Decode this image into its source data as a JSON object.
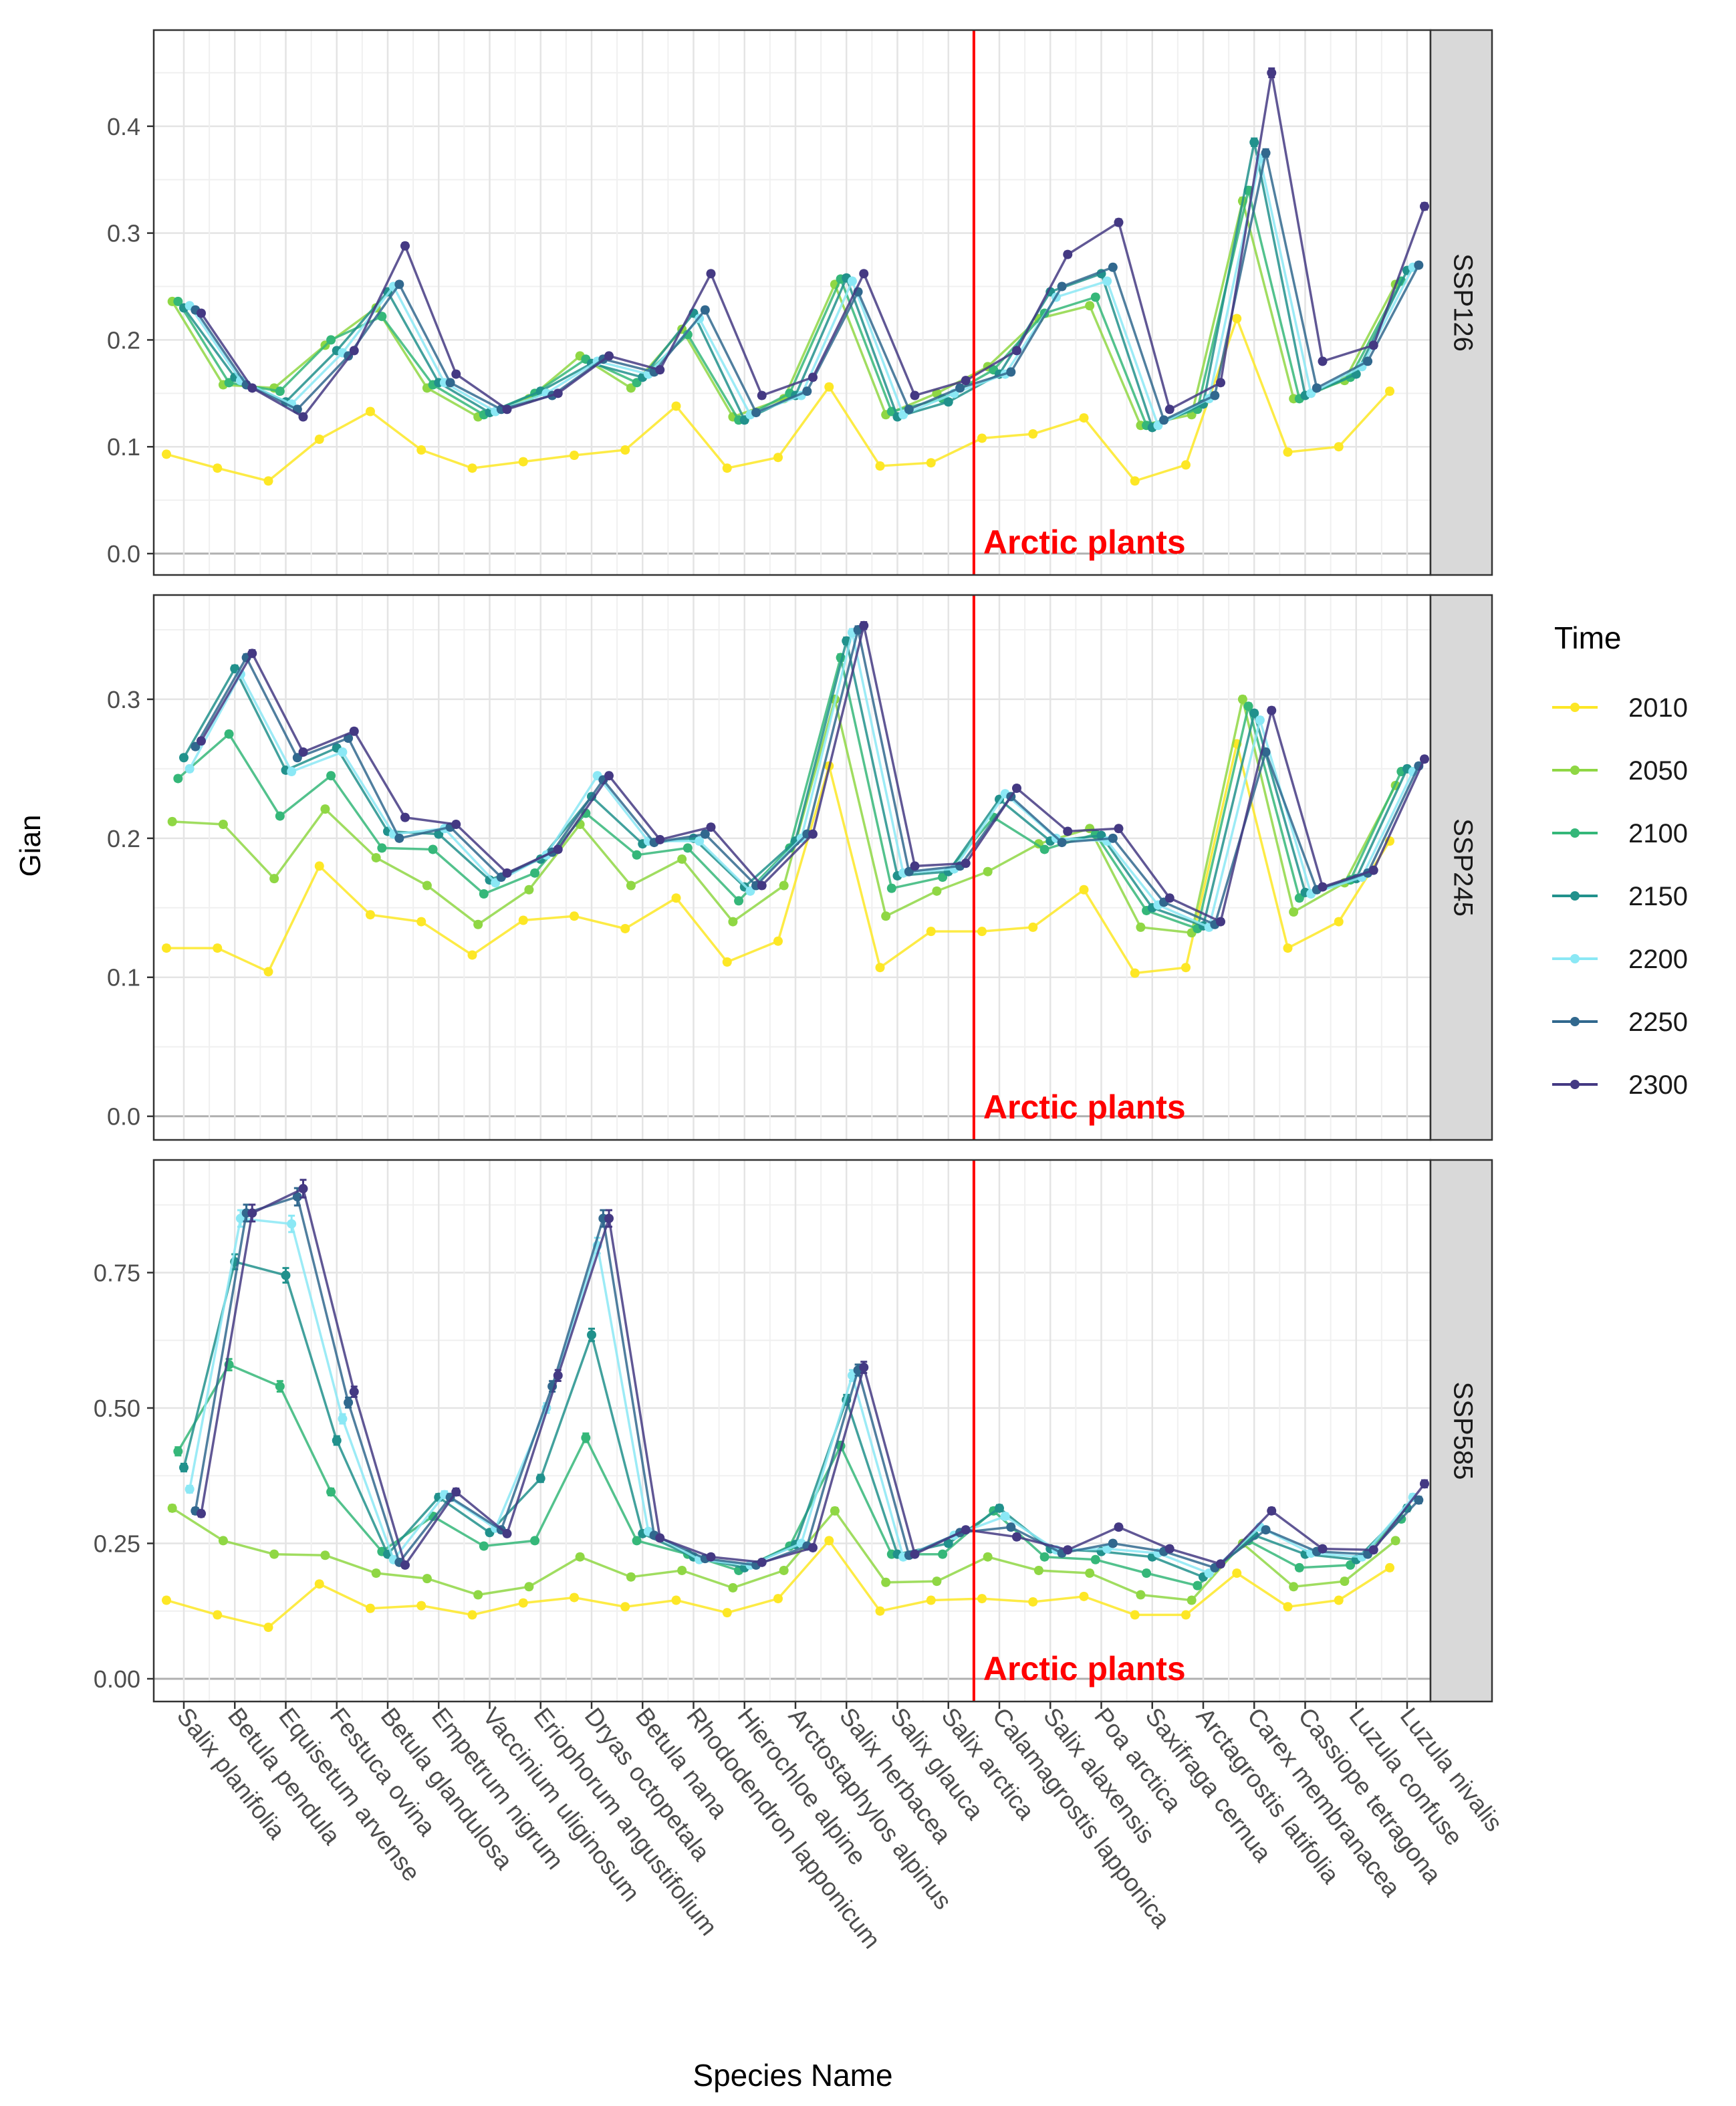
{
  "chart_data": {
    "type": "line",
    "xlabel": "Species Name",
    "ylabel": "Gian",
    "legend_title": "Time",
    "legend_position": "right",
    "annotation": "Arctic plants",
    "annotation_color": "#ff0000",
    "annotation_after_category": "Salix arctica",
    "categories": [
      "Salix planifolia",
      "Betula pendula",
      "Equisetum arvense",
      "Festuca ovina",
      "Betula glandulosa",
      "Empetrum nigrum",
      "Vaccinium uliginosum",
      "Eriophorum angustifolium",
      "Dryas octopetala",
      "Betula nana",
      "Rhododendron lapponicum",
      "Hierochloe alpine",
      "Arctostaphylos alpinus",
      "Salix herbacea",
      "Salix glauca",
      "Salix arctica",
      "Calamagrostis lapponica",
      "Salix alaxensis",
      "Poa arctica",
      "Saxifraga cernua",
      "Arctagrostis latifolia",
      "Carex membranacea",
      "Cassiope tetragona",
      "Luzula confuse",
      "Luzula nivalis"
    ],
    "series_names": [
      "2010",
      "2050",
      "2100",
      "2150",
      "2200",
      "2250",
      "2300"
    ],
    "series_colors": [
      "#fde725",
      "#8fd744",
      "#35b779",
      "#21918c",
      "#8be8f5",
      "#31688e",
      "#443983"
    ],
    "panels": [
      {
        "label": "SSP126",
        "ylim": [
          -0.02,
          0.49
        ],
        "yticks": [
          0.0,
          0.1,
          0.2,
          0.3,
          0.4
        ],
        "yticklabels": [
          "0.0",
          "0.1",
          "0.2",
          "0.3",
          "0.4"
        ],
        "values": [
          [
            0.093,
            0.08,
            0.068,
            0.107,
            0.133,
            0.097,
            0.08,
            0.086,
            0.092,
            0.097,
            0.138,
            0.08,
            0.09,
            0.156,
            0.082,
            0.085,
            0.108,
            0.112,
            0.127,
            0.068,
            0.083,
            0.22,
            0.095,
            0.1,
            0.152
          ],
          [
            0.236,
            0.158,
            0.155,
            0.195,
            0.23,
            0.155,
            0.128,
            0.145,
            0.185,
            0.155,
            0.21,
            0.128,
            0.145,
            0.252,
            0.13,
            0.15,
            0.175,
            0.22,
            0.232,
            0.12,
            0.13,
            0.33,
            0.145,
            0.162,
            0.252
          ],
          [
            0.236,
            0.16,
            0.152,
            0.2,
            0.222,
            0.158,
            0.13,
            0.15,
            0.182,
            0.16,
            0.205,
            0.125,
            0.15,
            0.257,
            0.133,
            0.145,
            0.172,
            0.225,
            0.24,
            0.12,
            0.135,
            0.34,
            0.145,
            0.165,
            0.255
          ],
          [
            0.23,
            0.165,
            0.142,
            0.19,
            0.245,
            0.16,
            0.132,
            0.152,
            0.178,
            0.165,
            0.225,
            0.125,
            0.148,
            0.258,
            0.128,
            0.142,
            0.168,
            0.245,
            0.262,
            0.118,
            0.14,
            0.385,
            0.148,
            0.168,
            0.265
          ],
          [
            0.232,
            0.162,
            0.14,
            0.188,
            0.25,
            0.16,
            0.133,
            0.15,
            0.18,
            0.168,
            0.22,
            0.13,
            0.148,
            0.255,
            0.13,
            0.15,
            0.168,
            0.24,
            0.255,
            0.12,
            0.145,
            0.37,
            0.15,
            0.175,
            0.268
          ],
          [
            0.228,
            0.158,
            0.135,
            0.185,
            0.252,
            0.16,
            0.135,
            0.148,
            0.182,
            0.17,
            0.228,
            0.132,
            0.152,
            0.245,
            0.135,
            0.155,
            0.17,
            0.25,
            0.268,
            0.125,
            0.148,
            0.375,
            0.155,
            0.18,
            0.27
          ],
          [
            0.225,
            0.155,
            0.128,
            0.19,
            0.288,
            0.168,
            0.135,
            0.15,
            0.185,
            0.172,
            0.262,
            0.148,
            0.165,
            0.262,
            0.148,
            0.162,
            0.19,
            0.28,
            0.31,
            0.135,
            0.16,
            0.45,
            0.18,
            0.195,
            0.325
          ]
        ]
      },
      {
        "label": "SSP245",
        "ylim": [
          -0.017,
          0.375
        ],
        "yticks": [
          0.0,
          0.1,
          0.2,
          0.3
        ],
        "yticklabels": [
          "0.0",
          "0.1",
          "0.2",
          "0.3"
        ],
        "values": [
          [
            0.121,
            0.121,
            0.104,
            0.18,
            0.145,
            0.14,
            0.116,
            0.141,
            0.144,
            0.135,
            0.157,
            0.111,
            0.126,
            0.252,
            0.107,
            0.133,
            0.133,
            0.136,
            0.163,
            0.103,
            0.107,
            0.268,
            0.121,
            0.14,
            0.198
          ],
          [
            0.212,
            0.21,
            0.171,
            0.221,
            0.186,
            0.166,
            0.138,
            0.163,
            0.21,
            0.166,
            0.185,
            0.14,
            0.166,
            0.3,
            0.144,
            0.162,
            0.176,
            0.196,
            0.207,
            0.136,
            0.132,
            0.3,
            0.147,
            0.168,
            0.238
          ],
          [
            0.243,
            0.275,
            0.216,
            0.245,
            0.193,
            0.192,
            0.16,
            0.175,
            0.218,
            0.188,
            0.193,
            0.155,
            0.193,
            0.33,
            0.164,
            0.172,
            0.215,
            0.192,
            0.203,
            0.148,
            0.135,
            0.295,
            0.157,
            0.17,
            0.248
          ],
          [
            0.258,
            0.322,
            0.249,
            0.265,
            0.205,
            0.203,
            0.17,
            0.185,
            0.23,
            0.196,
            0.2,
            0.165,
            0.198,
            0.342,
            0.173,
            0.176,
            0.228,
            0.198,
            0.202,
            0.15,
            0.137,
            0.29,
            0.161,
            0.171,
            0.25
          ],
          [
            0.25,
            0.318,
            0.248,
            0.262,
            0.203,
            0.207,
            0.168,
            0.188,
            0.245,
            0.198,
            0.198,
            0.162,
            0.2,
            0.348,
            0.175,
            0.178,
            0.232,
            0.2,
            0.198,
            0.152,
            0.136,
            0.285,
            0.16,
            0.172,
            0.248
          ],
          [
            0.266,
            0.33,
            0.258,
            0.272,
            0.2,
            0.208,
            0.172,
            0.19,
            0.242,
            0.197,
            0.203,
            0.166,
            0.203,
            0.35,
            0.176,
            0.18,
            0.23,
            0.197,
            0.2,
            0.154,
            0.138,
            0.262,
            0.163,
            0.175,
            0.252
          ],
          [
            0.27,
            0.333,
            0.262,
            0.277,
            0.215,
            0.21,
            0.175,
            0.192,
            0.245,
            0.199,
            0.208,
            0.166,
            0.203,
            0.353,
            0.18,
            0.182,
            0.236,
            0.205,
            0.207,
            0.157,
            0.14,
            0.292,
            0.165,
            0.177,
            0.257
          ]
        ]
      },
      {
        "label": "SSP585",
        "ylim": [
          -0.042,
          0.958
        ],
        "yticks": [
          0.0,
          0.25,
          0.5,
          0.75
        ],
        "yticklabels": [
          "0.00",
          "0.25",
          "0.50",
          "0.75"
        ],
        "values": [
          [
            0.145,
            0.118,
            0.095,
            0.175,
            0.13,
            0.135,
            0.118,
            0.14,
            0.15,
            0.133,
            0.145,
            0.122,
            0.148,
            0.255,
            0.125,
            0.145,
            0.148,
            0.142,
            0.152,
            0.118,
            0.118,
            0.195,
            0.133,
            0.145,
            0.205
          ],
          [
            0.315,
            0.255,
            0.23,
            0.228,
            0.195,
            0.185,
            0.155,
            0.17,
            0.225,
            0.188,
            0.2,
            0.168,
            0.2,
            0.31,
            0.178,
            0.18,
            0.225,
            0.2,
            0.195,
            0.155,
            0.145,
            0.25,
            0.17,
            0.18,
            0.255
          ],
          [
            0.42,
            0.58,
            0.54,
            0.345,
            0.235,
            0.3,
            0.245,
            0.255,
            0.445,
            0.255,
            0.23,
            0.2,
            0.245,
            0.43,
            0.23,
            0.23,
            0.31,
            0.225,
            0.22,
            0.195,
            0.172,
            0.255,
            0.205,
            0.21,
            0.295
          ],
          [
            0.39,
            0.77,
            0.745,
            0.44,
            0.23,
            0.335,
            0.27,
            0.37,
            0.635,
            0.268,
            0.225,
            0.205,
            0.248,
            0.515,
            0.23,
            0.25,
            0.315,
            0.24,
            0.235,
            0.225,
            0.188,
            0.265,
            0.23,
            0.22,
            0.315
          ],
          [
            0.35,
            0.85,
            0.84,
            0.48,
            0.22,
            0.34,
            0.278,
            0.5,
            0.8,
            0.272,
            0.22,
            0.21,
            0.25,
            0.56,
            0.225,
            0.265,
            0.3,
            0.238,
            0.24,
            0.232,
            0.195,
            0.28,
            0.232,
            0.225,
            0.335
          ],
          [
            0.31,
            0.86,
            0.89,
            0.51,
            0.215,
            0.335,
            0.275,
            0.54,
            0.85,
            0.265,
            0.222,
            0.21,
            0.245,
            0.57,
            0.228,
            0.27,
            0.28,
            0.232,
            0.25,
            0.235,
            0.205,
            0.275,
            0.235,
            0.23,
            0.33
          ],
          [
            0.305,
            0.86,
            0.905,
            0.53,
            0.21,
            0.345,
            0.268,
            0.56,
            0.85,
            0.26,
            0.225,
            0.215,
            0.242,
            0.575,
            0.23,
            0.275,
            0.262,
            0.238,
            0.28,
            0.24,
            0.212,
            0.31,
            0.24,
            0.238,
            0.36
          ]
        ]
      }
    ]
  }
}
